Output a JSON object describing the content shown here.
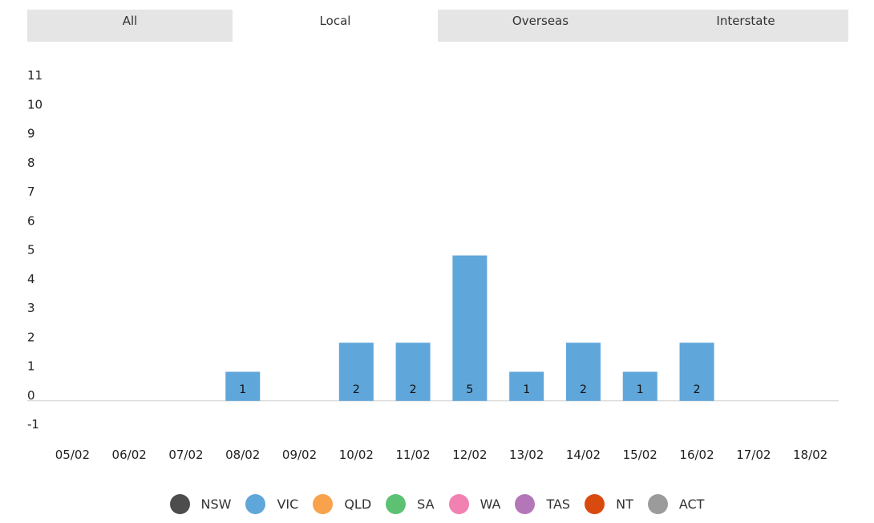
{
  "tabs": [
    {
      "label": "All",
      "active": false
    },
    {
      "label": "Local",
      "active": true
    },
    {
      "label": "Overseas",
      "active": false
    },
    {
      "label": "Interstate",
      "active": false
    }
  ],
  "chart_data": {
    "type": "bar",
    "categories": [
      "05/02",
      "06/02",
      "07/02",
      "08/02",
      "09/02",
      "10/02",
      "11/02",
      "12/02",
      "13/02",
      "14/02",
      "15/02",
      "16/02",
      "17/02",
      "18/02"
    ],
    "series": [
      {
        "name": "NSW",
        "color": "#4d4d4d",
        "values": [
          0,
          0,
          0,
          0,
          0,
          0,
          0,
          0,
          0,
          0,
          0,
          0,
          0,
          0
        ]
      },
      {
        "name": "VIC",
        "color": "#5fa6da",
        "values": [
          0,
          0,
          0,
          1,
          0,
          2,
          2,
          5,
          1,
          2,
          1,
          2,
          0,
          0
        ]
      },
      {
        "name": "QLD",
        "color": "#f8a24b",
        "values": [
          0,
          0,
          0,
          0,
          0,
          0,
          0,
          0,
          0,
          0,
          0,
          0,
          0,
          0
        ]
      },
      {
        "name": "SA",
        "color": "#5cc173",
        "values": [
          0,
          0,
          0,
          0,
          0,
          0,
          0,
          0,
          0,
          0,
          0,
          0,
          0,
          0
        ]
      },
      {
        "name": "WA",
        "color": "#f081b0",
        "values": [
          0,
          0,
          0,
          0,
          0,
          0,
          0,
          0,
          0,
          0,
          0,
          0,
          0,
          0
        ]
      },
      {
        "name": "TAS",
        "color": "#b377b9",
        "values": [
          0,
          0,
          0,
          0,
          0,
          0,
          0,
          0,
          0,
          0,
          0,
          0,
          0,
          0
        ]
      },
      {
        "name": "NT",
        "color": "#d94a0f",
        "values": [
          0,
          0,
          0,
          0,
          0,
          0,
          0,
          0,
          0,
          0,
          0,
          0,
          0,
          0
        ]
      },
      {
        "name": "ACT",
        "color": "#9b9b9b",
        "values": [
          0,
          0,
          0,
          0,
          0,
          0,
          0,
          0,
          0,
          0,
          0,
          0,
          0,
          0
        ]
      }
    ],
    "data_labels": [
      "",
      "",
      "",
      "1",
      "",
      "2",
      "2",
      "5",
      "1",
      "2",
      "1",
      "2",
      "",
      ""
    ],
    "y_ticks": [
      "11",
      "10",
      "9",
      "8",
      "7",
      "6",
      "5",
      "4",
      "3",
      "2",
      "1",
      "0",
      "-1"
    ],
    "ylim": [
      -1,
      11
    ],
    "grid": false,
    "legend_position": "bottom"
  }
}
